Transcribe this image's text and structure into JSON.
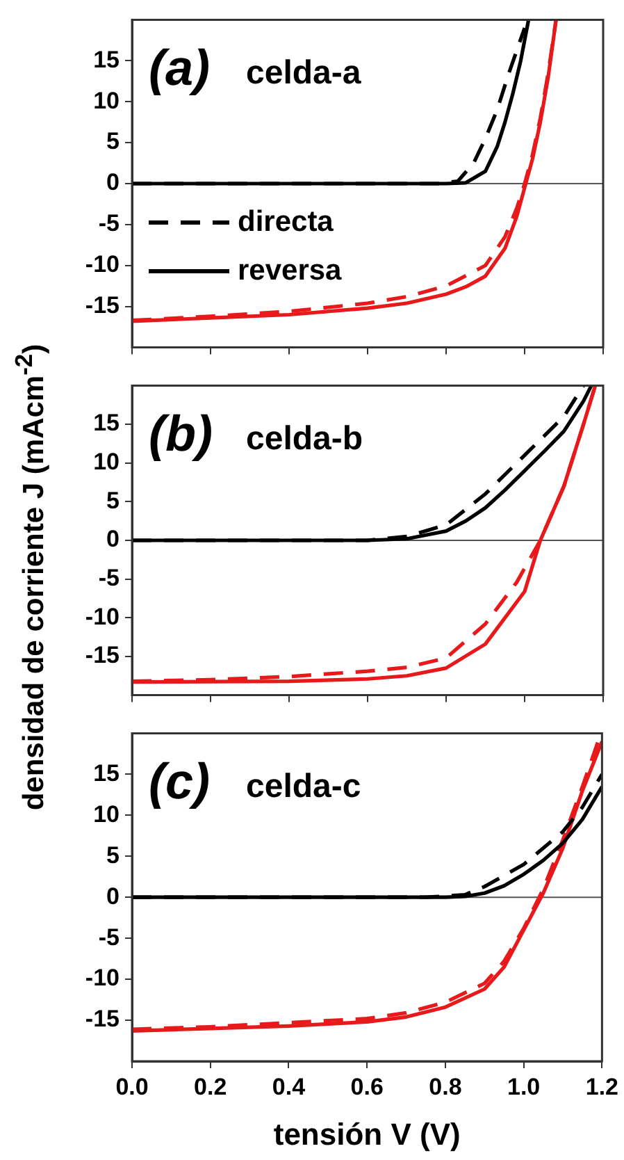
{
  "chart_data": [
    {
      "type": "line",
      "annotations": [
        "(a)",
        "celda-a"
      ],
      "xlim": [
        0,
        1.2
      ],
      "xticks": [
        0,
        0.2,
        0.4,
        0.6,
        0.8,
        1,
        1.2
      ],
      "ylim": [
        -20,
        20
      ],
      "yticks": [
        -15,
        -10,
        -5,
        0,
        5,
        10,
        15
      ],
      "tick_labels": "y",
      "legend": "center left",
      "ref_lines": [
        {
          "axis": "y",
          "value": 0,
          "color": "#555555"
        }
      ],
      "series": [
        {
          "name": "directa",
          "color": "#000000",
          "line_style": "dashed",
          "x": [
            0,
            0.78,
            0.83,
            0.87,
            0.9,
            0.93,
            0.96,
            1.0
          ],
          "values": [
            0,
            0,
            0.3,
            2.5,
            5.5,
            9,
            13.5,
            19
          ]
        },
        {
          "name": "reversa",
          "color": "#000000",
          "line_style": "solid",
          "x": [
            0,
            0.8,
            0.85,
            0.9,
            0.93,
            0.95,
            0.97,
            0.99,
            1.01
          ],
          "values": [
            0,
            0,
            0.1,
            1.5,
            4.5,
            7.5,
            11,
            15,
            20
          ]
        },
        {
          "color": "#e8191b",
          "line_style": "dashed",
          "x": [
            0,
            0.2,
            0.4,
            0.6,
            0.7,
            0.8,
            0.9,
            0.95,
            0.98,
            1.0,
            1.02,
            1.04,
            1.06,
            1.08
          ],
          "values": [
            -16.7,
            -16.2,
            -15.6,
            -14.6,
            -13.8,
            -12.5,
            -10,
            -6.5,
            -3,
            0,
            3.5,
            8,
            13.5,
            20
          ]
        },
        {
          "color": "#e8191b",
          "line_style": "solid",
          "x": [
            0,
            0.2,
            0.4,
            0.6,
            0.7,
            0.8,
            0.85,
            0.9,
            0.95,
            0.98,
            1.0,
            1.02,
            1.04,
            1.06,
            1.08
          ],
          "values": [
            -16.8,
            -16.4,
            -16,
            -15.2,
            -14.6,
            -13.5,
            -12.6,
            -11.3,
            -7.9,
            -4,
            -0.5,
            3,
            7.5,
            13,
            20
          ]
        }
      ]
    },
    {
      "type": "line",
      "annotations": [
        "(b)",
        "celda-b"
      ],
      "ylabel": "densidad de corriente J (mAcm$^{-2}$)",
      "xlim": [
        0,
        1.2
      ],
      "xticks": [
        0,
        0.2,
        0.4,
        0.6,
        0.8,
        1,
        1.2
      ],
      "ylim": [
        -20,
        20
      ],
      "yticks": [
        -15,
        -10,
        -5,
        0,
        5,
        10,
        15
      ],
      "tick_labels": "y",
      "ref_lines": [
        {
          "axis": "y",
          "value": 0,
          "color": "#555555"
        }
      ],
      "series": [
        {
          "color": "#000000",
          "line_style": "dashed",
          "x": [
            0,
            0.6,
            0.7,
            0.8,
            0.9,
            1.0,
            1.1,
            1.15
          ],
          "values": [
            0,
            0,
            0.5,
            2,
            6,
            11,
            16,
            20
          ]
        },
        {
          "color": "#000000",
          "line_style": "solid",
          "x": [
            0,
            0.6,
            0.7,
            0.8,
            0.85,
            0.9,
            0.95,
            1.0,
            1.05,
            1.1,
            1.15,
            1.17
          ],
          "values": [
            0,
            0,
            0.2,
            1.2,
            2.5,
            4.2,
            6.5,
            9,
            11.5,
            14.1,
            18,
            20
          ]
        },
        {
          "color": "#e8191b",
          "line_style": "dashed",
          "x": [
            0,
            0.2,
            0.4,
            0.6,
            0.7,
            0.8,
            0.9,
            0.98,
            1.04,
            1.1,
            1.15,
            1.18
          ],
          "values": [
            -18.2,
            -18,
            -17.6,
            -16.9,
            -16.4,
            -15.2,
            -10.8,
            -5.4,
            0,
            7,
            15,
            20
          ]
        },
        {
          "color": "#e8191b",
          "line_style": "solid",
          "x": [
            0,
            0.4,
            0.6,
            0.7,
            0.8,
            0.9,
            1.0,
            1.04,
            1.1,
            1.15,
            1.18
          ],
          "values": [
            -18.3,
            -18.2,
            -17.9,
            -17.5,
            -16.5,
            -13.4,
            -6.6,
            0,
            7,
            15,
            20
          ]
        }
      ]
    },
    {
      "type": "line",
      "annotations": [
        "(c)",
        "celda-c"
      ],
      "xlabel": "tensión V (V)",
      "xlim": [
        0,
        1.2
      ],
      "xticks": [
        {
          "value": 0,
          "label": "0.0"
        },
        0.2,
        0.4,
        0.6,
        0.8,
        {
          "value": 1,
          "label": "1.0"
        },
        1.2
      ],
      "ylim": [
        -20,
        20
      ],
      "yticks": [
        -15,
        -10,
        -5,
        0,
        5,
        10,
        15
      ],
      "ref_lines": [
        {
          "axis": "y",
          "value": 0,
          "color": "#555555"
        }
      ],
      "series": [
        {
          "color": "#000000",
          "line_style": "dashed",
          "x": [
            0,
            0.75,
            0.85,
            0.9,
            1.0,
            1.1,
            1.15,
            1.2
          ],
          "values": [
            0,
            0,
            0.3,
            1.3,
            4,
            8,
            11,
            15
          ]
        },
        {
          "color": "#000000",
          "line_style": "solid",
          "x": [
            0,
            0.8,
            0.85,
            0.9,
            0.95,
            1.0,
            1.05,
            1.1,
            1.15,
            1.2
          ],
          "values": [
            0,
            0,
            0.1,
            0.5,
            1.4,
            2.8,
            4.5,
            6.6,
            9.5,
            13.5
          ]
        },
        {
          "color": "#e8191b",
          "line_style": "dashed",
          "x": [
            0,
            0.2,
            0.4,
            0.6,
            0.7,
            0.8,
            0.9,
            0.95,
            1.0,
            1.05,
            1.1,
            1.15,
            1.19
          ],
          "values": [
            -16.1,
            -15.8,
            -15.3,
            -14.8,
            -14.1,
            -12.8,
            -10.5,
            -7.8,
            -3.8,
            1,
            7,
            13.5,
            19
          ]
        },
        {
          "color": "#e8191b",
          "line_style": "solid",
          "x": [
            0,
            0.2,
            0.4,
            0.6,
            0.7,
            0.8,
            0.9,
            0.95,
            1.0,
            1.05,
            1.1,
            1.15,
            1.2
          ],
          "values": [
            -16.3,
            -16,
            -15.7,
            -15.2,
            -14.6,
            -13.4,
            -11.2,
            -8.5,
            -4,
            0.5,
            6,
            13,
            19
          ]
        }
      ]
    }
  ]
}
